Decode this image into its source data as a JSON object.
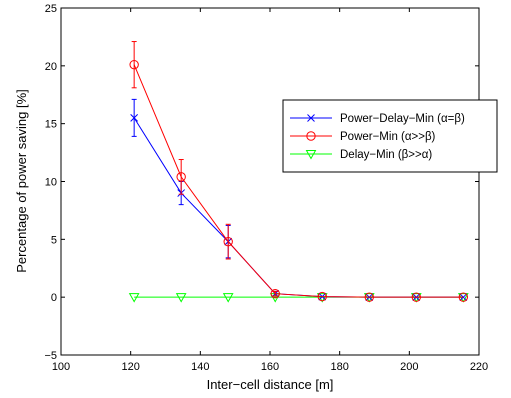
{
  "chart_data": {
    "type": "line",
    "title": "",
    "xlabel": "Inter−cell distance [m]",
    "ylabel": "Percentage of power saving [%]",
    "xlim": [
      100,
      220
    ],
    "ylim": [
      -5,
      25
    ],
    "xticks": [
      100,
      120,
      140,
      160,
      180,
      200,
      220
    ],
    "yticks": [
      -5,
      0,
      5,
      10,
      15,
      20,
      25
    ],
    "xtick_labels": [
      "100",
      "120",
      "140",
      "160",
      "180",
      "200",
      "220"
    ],
    "ytick_labels": [
      "−5",
      "0",
      "5",
      "10",
      "15",
      "20",
      "25"
    ],
    "grid": false,
    "legend_position": "right",
    "x": [
      121,
      134.5,
      148,
      161.5,
      175,
      188.5,
      202,
      215.5
    ],
    "series": [
      {
        "name": "Power−Delay−Min (α=β)",
        "color": "#0000ff",
        "marker": "x",
        "values": [
          15.5,
          9.0,
          4.8,
          0.3,
          0.05,
          0.0,
          0.0,
          0.0
        ],
        "err": [
          1.6,
          1.0,
          1.4,
          0.2,
          0.05,
          0.0,
          0.0,
          0.0
        ]
      },
      {
        "name": "Power−Min (α>>β)",
        "color": "#ff0000",
        "marker": "circle",
        "values": [
          20.1,
          10.4,
          4.8,
          0.3,
          0.05,
          0.0,
          0.0,
          0.0
        ],
        "err": [
          2.0,
          1.5,
          1.5,
          0.2,
          0.05,
          0.0,
          0.0,
          0.0
        ]
      },
      {
        "name": "Delay−Min (β>>α)",
        "color": "#00ff00",
        "marker": "triangle-down",
        "values": [
          0.0,
          0.0,
          0.0,
          0.0,
          0.0,
          0.0,
          0.0,
          0.0
        ],
        "err": [
          0,
          0,
          0,
          0,
          0,
          0,
          0,
          0
        ]
      }
    ]
  }
}
